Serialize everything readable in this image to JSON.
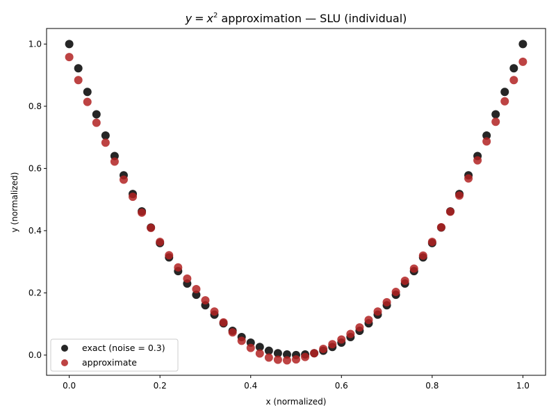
{
  "chart_data": {
    "type": "scatter",
    "title": {
      "y": "y",
      "eq": "=",
      "x": "x",
      "sup": "2",
      "rest": " approximation — SLU (individual)"
    },
    "xlabel": "x (normalized)",
    "ylabel": "y (normalized)",
    "xlim": [
      -0.05,
      1.05
    ],
    "ylim": [
      -0.065,
      1.05
    ],
    "xticks": [
      "0.0",
      "0.2",
      "0.4",
      "0.6",
      "0.8",
      "1.0"
    ],
    "yticks": [
      "0.0",
      "0.2",
      "0.4",
      "0.6",
      "0.8",
      "1.0"
    ],
    "grid": false,
    "legend_position": "lower-left",
    "series": [
      {
        "name": "exact (noise = 0.3)",
        "color": "#000000",
        "marker": "circle",
        "x": [
          0.0,
          0.02,
          0.04,
          0.06,
          0.08,
          0.1,
          0.12,
          0.14,
          0.16,
          0.18,
          0.2,
          0.22,
          0.24,
          0.26,
          0.28,
          0.3,
          0.32,
          0.34,
          0.36,
          0.38,
          0.4,
          0.42,
          0.44,
          0.46,
          0.48,
          0.5,
          0.52,
          0.54,
          0.56,
          0.58,
          0.6,
          0.62,
          0.64,
          0.66,
          0.68,
          0.7,
          0.72,
          0.74,
          0.76,
          0.78,
          0.8,
          0.82,
          0.84,
          0.86,
          0.88,
          0.9,
          0.92,
          0.94,
          0.96,
          0.98,
          1.0
        ],
        "y": [
          1.0,
          0.922,
          0.846,
          0.774,
          0.706,
          0.64,
          0.578,
          0.518,
          0.462,
          0.41,
          0.36,
          0.314,
          0.27,
          0.23,
          0.194,
          0.16,
          0.13,
          0.102,
          0.078,
          0.058,
          0.04,
          0.026,
          0.014,
          0.006,
          0.002,
          0.0,
          0.002,
          0.006,
          0.014,
          0.026,
          0.04,
          0.058,
          0.078,
          0.102,
          0.13,
          0.16,
          0.194,
          0.23,
          0.27,
          0.314,
          0.36,
          0.41,
          0.462,
          0.518,
          0.578,
          0.64,
          0.706,
          0.774,
          0.846,
          0.922,
          1.0
        ]
      },
      {
        "name": "approximate",
        "color": "#b22222",
        "marker": "circle",
        "x": [
          0.0,
          0.02,
          0.04,
          0.06,
          0.08,
          0.1,
          0.12,
          0.14,
          0.16,
          0.18,
          0.2,
          0.22,
          0.24,
          0.26,
          0.28,
          0.3,
          0.32,
          0.34,
          0.36,
          0.38,
          0.4,
          0.42,
          0.44,
          0.46,
          0.48,
          0.5,
          0.52,
          0.54,
          0.56,
          0.58,
          0.6,
          0.62,
          0.64,
          0.66,
          0.68,
          0.7,
          0.72,
          0.74,
          0.76,
          0.78,
          0.8,
          0.82,
          0.84,
          0.86,
          0.88,
          0.9,
          0.92,
          0.94,
          0.96,
          0.98,
          1.0
        ],
        "y": [
          0.958,
          0.884,
          0.814,
          0.747,
          0.683,
          0.622,
          0.564,
          0.509,
          0.458,
          0.409,
          0.364,
          0.321,
          0.282,
          0.246,
          0.212,
          0.176,
          0.14,
          0.105,
          0.073,
          0.046,
          0.023,
          0.005,
          -0.008,
          -0.015,
          -0.017,
          -0.014,
          -0.006,
          0.006,
          0.02,
          0.035,
          0.05,
          0.068,
          0.089,
          0.113,
          0.14,
          0.17,
          0.203,
          0.239,
          0.278,
          0.32,
          0.364,
          0.411,
          0.461,
          0.513,
          0.568,
          0.626,
          0.687,
          0.75,
          0.816,
          0.884,
          0.943
        ]
      }
    ]
  }
}
